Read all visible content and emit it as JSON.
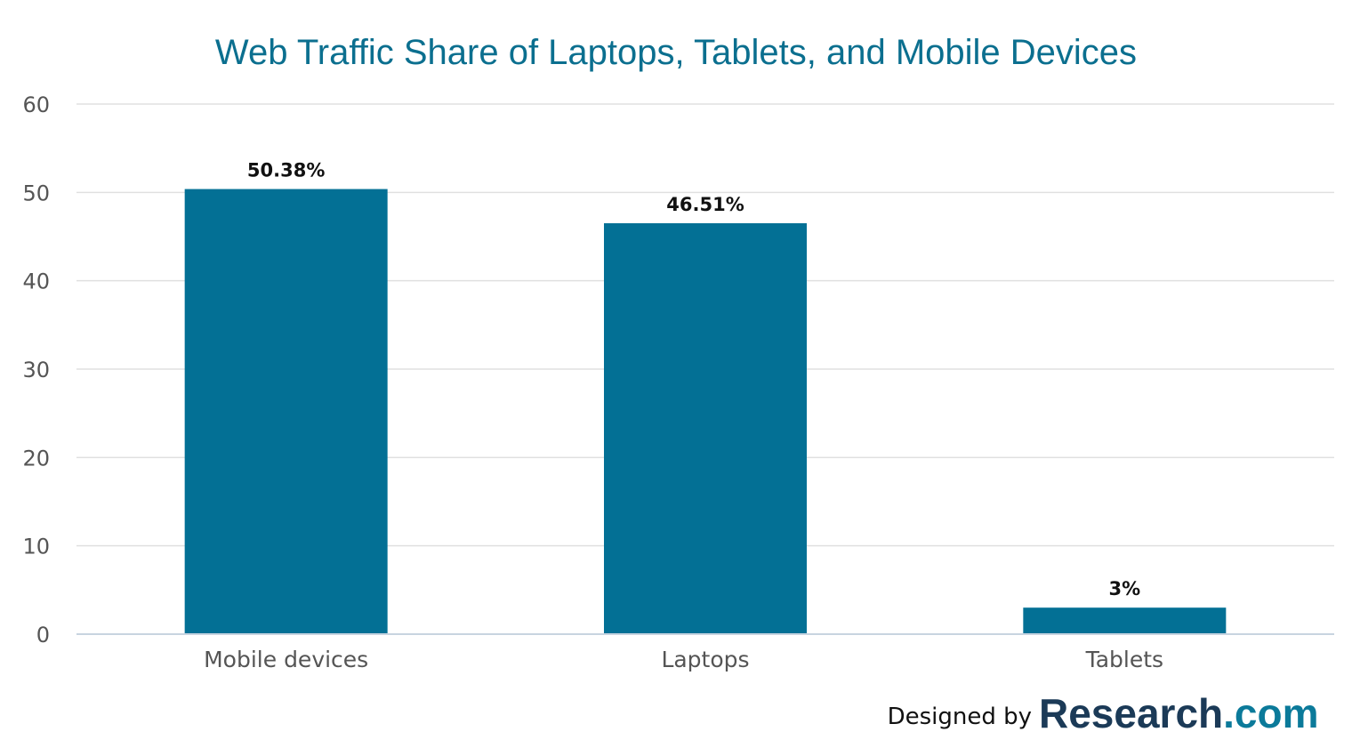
{
  "colors": {
    "bar": "#037095",
    "title": "#0b6f8f",
    "grid": "#e0e0e0",
    "axis": "#c8d4e0",
    "brand_dark": "#1b3a57",
    "brand_accent": "#0b7a9a"
  },
  "chart_data": {
    "type": "bar",
    "title": "Web Traffic Share of Laptops, Tablets, and Mobile Devices",
    "categories": [
      "Mobile devices",
      "Laptops",
      "Tablets"
    ],
    "values": [
      50.38,
      46.51,
      3
    ],
    "data_labels": [
      "50.38%",
      "46.51%",
      "3%"
    ],
    "xlabel": "",
    "ylabel": "",
    "ylim": [
      0,
      60
    ],
    "yticks": [
      0,
      10,
      20,
      30,
      40,
      50,
      60
    ],
    "grid": true,
    "legend": "none"
  },
  "credit": {
    "prefix": "Designed by",
    "brand_main": "Research",
    "brand_suffix": ".com"
  }
}
